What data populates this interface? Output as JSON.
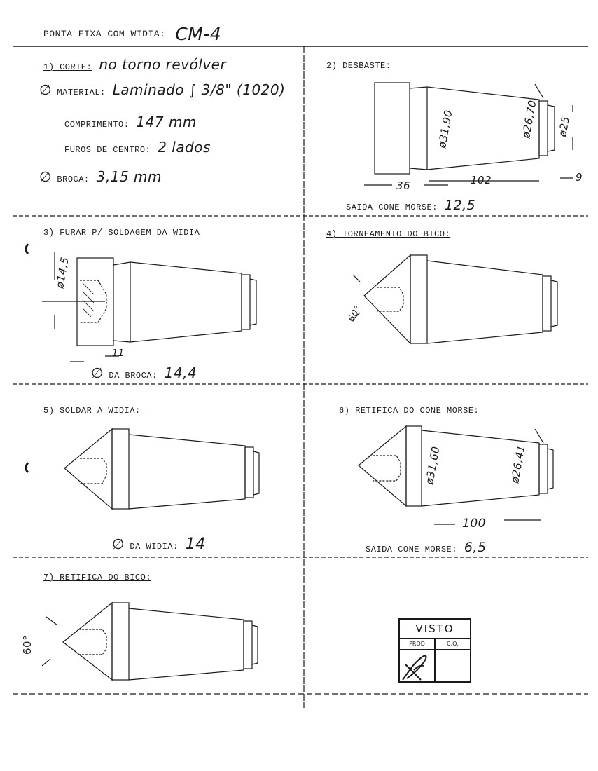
{
  "header": {
    "label": "PONTA FIXA COM WIDIA:",
    "code": "CM-4"
  },
  "step1": {
    "title": "1) CORTE:",
    "title_value": "no torno revólver",
    "material_label": "MATERIAL:",
    "material_value": "Laminado ∫ 3/8\" (1020)",
    "comprimento_label": "COMPRIMENTO:",
    "comprimento_value": "147 mm",
    "furos_label": "FUROS DE CENTRO:",
    "furos_value": "2 lados",
    "broca_label": "BROCA:",
    "broca_value": "3,15 mm"
  },
  "step2": {
    "title": "2) DESBASTE:",
    "dim_d1": "ø31,90",
    "dim_d2": "ø26,70",
    "dim_d3": "ø25",
    "dim_l1": "36",
    "dim_l2": "102",
    "dim_l3": "9",
    "saida_label": "SAIDA CONE MORSE:",
    "saida_value": "12,5"
  },
  "step3": {
    "title": "3) FURAR P/ SOLDAGEM DA WIDIA",
    "dim_d": "ø14,5",
    "dim_depth": "11",
    "broca_label": "DA BROCA:",
    "broca_value": "14,4"
  },
  "step4": {
    "title": "4) TORNEAMENTO DO BICO:",
    "angle": "60°"
  },
  "step5": {
    "title": "5) SOLDAR A WIDIA:",
    "widia_label": "DA WIDIA:",
    "widia_value": "14"
  },
  "step6": {
    "title": "6) RETIFICA DO CONE MORSE:",
    "dim_d1": "ø31,60",
    "dim_d2": "ø26,41",
    "dim_l": "100",
    "saida_label": "SAIDA CONE MORSE:",
    "saida_value": "6,5"
  },
  "step7": {
    "title": "7) RETIFICA DO BICO:",
    "angle": "60°"
  },
  "stamp": {
    "title": "VISTO",
    "col1": "PROD",
    "col2": "C.Q."
  }
}
